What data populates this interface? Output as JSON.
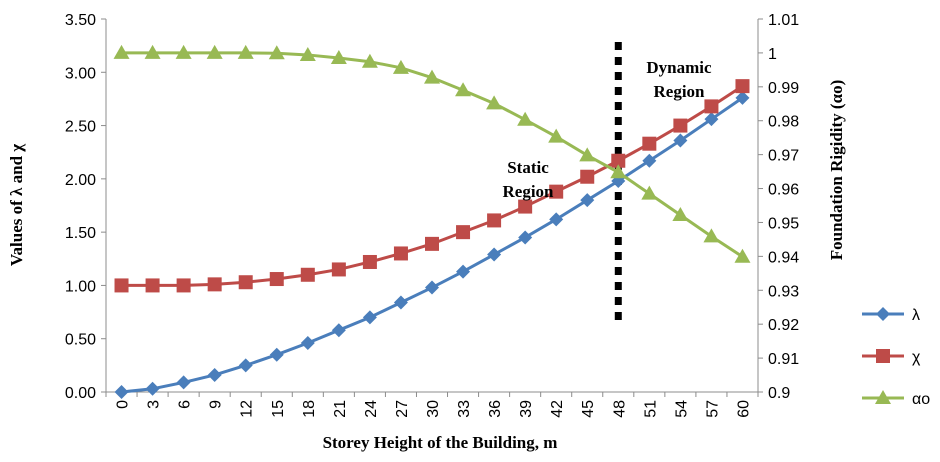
{
  "chart_data": {
    "type": "line",
    "x": [
      0,
      3,
      6,
      9,
      12,
      15,
      18,
      21,
      24,
      27,
      30,
      33,
      36,
      39,
      42,
      45,
      48,
      51,
      54,
      57,
      60
    ],
    "xlabel": "Storey Height of the Building,  m",
    "ylabel_left": "Values of  λ and χ",
    "ylabel_right": "Foundation Rigidity (αo)",
    "ylim_left": [
      0,
      3.5
    ],
    "ylim_right": [
      0.9,
      1.01
    ],
    "yticks_left": [
      "0.00",
      "0.50",
      "1.00",
      "1.50",
      "2.00",
      "2.50",
      "3.00",
      "3.50"
    ],
    "yticks_right": [
      "0.9",
      "0.91",
      "0.92",
      "0.93",
      "0.94",
      "0.95",
      "0.96",
      "0.97",
      "0.98",
      "0.99",
      "1",
      "1.01"
    ],
    "grid": false,
    "legend_position": "right",
    "series": [
      {
        "name": "λ",
        "axis": "left",
        "color": "#4a7ebb",
        "marker": "diamond",
        "values": [
          0.0,
          0.03,
          0.09,
          0.16,
          0.25,
          0.35,
          0.46,
          0.58,
          0.7,
          0.84,
          0.98,
          1.13,
          1.29,
          1.45,
          1.62,
          1.8,
          1.98,
          2.17,
          2.36,
          2.56,
          2.76
        ]
      },
      {
        "name": "χ",
        "axis": "left",
        "color": "#be4b48",
        "marker": "square",
        "values": [
          1.0,
          1.0,
          1.0,
          1.01,
          1.03,
          1.06,
          1.1,
          1.15,
          1.22,
          1.3,
          1.39,
          1.5,
          1.61,
          1.74,
          1.88,
          2.02,
          2.17,
          2.33,
          2.5,
          2.68,
          2.87
        ]
      },
      {
        "name": "αo",
        "axis": "right",
        "color": "#98b954",
        "marker": "triangle",
        "values": [
          1.0,
          1.0,
          1.0,
          1.0,
          1.0,
          0.9999,
          0.9994,
          0.9985,
          0.9974,
          0.9956,
          0.9927,
          0.989,
          0.9851,
          0.9803,
          0.9753,
          0.9698,
          0.9648,
          0.9585,
          0.9522,
          0.9459,
          0.9399
        ]
      }
    ],
    "annotations": {
      "static": [
        "Static",
        "Region"
      ],
      "dynamic": [
        "Dynamic",
        "Region"
      ],
      "divider_x": 48
    }
  }
}
